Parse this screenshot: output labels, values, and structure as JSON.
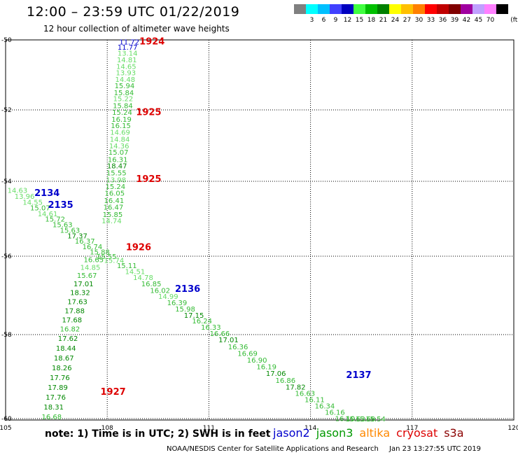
{
  "header": {
    "title": "12:00 – 23:59 UTC 01/22/2019",
    "subtitle": "12 hour collection of altimeter wave heights"
  },
  "color_scale": {
    "unit": "(ft)",
    "bins": [
      {
        "label": "",
        "color": "#808080"
      },
      {
        "label": "3",
        "color": "#00ffff"
      },
      {
        "label": "6",
        "color": "#00c0ff"
      },
      {
        "label": "9",
        "color": "#4040ff"
      },
      {
        "label": "12",
        "color": "#0000c0"
      },
      {
        "label": "15",
        "color": "#40ff40"
      },
      {
        "label": "18",
        "color": "#00c000"
      },
      {
        "label": "21",
        "color": "#008000"
      },
      {
        "label": "24",
        "color": "#ffff00"
      },
      {
        "label": "27",
        "color": "#ffc000"
      },
      {
        "label": "30",
        "color": "#ff8000"
      },
      {
        "label": "33",
        "color": "#ff0000"
      },
      {
        "label": "36",
        "color": "#c00000"
      },
      {
        "label": "39",
        "color": "#800000"
      },
      {
        "label": "42",
        "color": "#a000a0"
      },
      {
        "label": "45",
        "color": "#c0a0ff"
      },
      {
        "label": "70",
        "color": "#ff80ff"
      },
      {
        "label": "",
        "color": "#000000"
      }
    ]
  },
  "map": {
    "lon_ticks": [
      "105",
      "108",
      "111",
      "114",
      "117",
      "120"
    ],
    "lat_ticks": [
      "-50",
      "-52",
      "-54",
      "-56",
      "-58",
      "-60"
    ]
  },
  "tracks": {
    "colors": {
      "jason2": "#0000cc",
      "jason3": "#009900",
      "cryosat": "#dd0000",
      "light": "#66dd66",
      "mid": "#33bb33",
      "dark": "#008800"
    },
    "time_labels": [
      {
        "text": "1924",
        "sat": "cryosat",
        "lon": 108.95,
        "lat": -50.03
      },
      {
        "text": "1925",
        "sat": "cryosat",
        "lon": 108.85,
        "lat": -52.05
      },
      {
        "text": "1925",
        "sat": "cryosat",
        "lon": 108.85,
        "lat": -53.92
      },
      {
        "text": "1926",
        "sat": "cryosat",
        "lon": 108.55,
        "lat": -55.75
      },
      {
        "text": "1927",
        "sat": "cryosat",
        "lon": 107.8,
        "lat": -59.35
      },
      {
        "text": "2134",
        "sat": "jason2",
        "lon": 105.85,
        "lat": -54.3
      },
      {
        "text": "2135",
        "sat": "jason2",
        "lon": 106.25,
        "lat": -54.62
      },
      {
        "text": "2136",
        "sat": "jason2",
        "lon": 110.0,
        "lat": -56.82
      },
      {
        "text": "2137",
        "sat": "jason2",
        "lon": 115.05,
        "lat": -58.95
      }
    ],
    "values": [
      {
        "v": "11.72",
        "sat": "jason2",
        "lon": 108.65,
        "lat": -50.05
      },
      {
        "v": "11.77",
        "sat": "jason2",
        "lon": 108.6,
        "lat": -50.2
      },
      {
        "v": "13.14",
        "sat": "light",
        "lon": 108.6,
        "lat": -50.37
      },
      {
        "v": "14.81",
        "sat": "light",
        "lon": 108.58,
        "lat": -50.56
      },
      {
        "v": "14.65",
        "sat": "light",
        "lon": 108.56,
        "lat": -50.75
      },
      {
        "v": "13.93",
        "sat": "light",
        "lon": 108.55,
        "lat": -50.93
      },
      {
        "v": "14.48",
        "sat": "light",
        "lon": 108.53,
        "lat": -51.12
      },
      {
        "v": "15.94",
        "sat": "mid",
        "lon": 108.51,
        "lat": -51.3
      },
      {
        "v": "15.84",
        "sat": "mid",
        "lon": 108.49,
        "lat": -51.5
      },
      {
        "v": "15.22",
        "sat": "light",
        "lon": 108.47,
        "lat": -51.67
      },
      {
        "v": "15.84",
        "sat": "mid",
        "lon": 108.46,
        "lat": -51.87
      },
      {
        "v": "15.24",
        "sat": "mid",
        "lon": 108.44,
        "lat": -52.06
      },
      {
        "v": "16.19",
        "sat": "mid",
        "lon": 108.42,
        "lat": -52.25
      },
      {
        "v": "16.15",
        "sat": "mid",
        "lon": 108.4,
        "lat": -52.43
      },
      {
        "v": "14.69",
        "sat": "light",
        "lon": 108.38,
        "lat": -52.62
      },
      {
        "v": "14.84",
        "sat": "light",
        "lon": 108.37,
        "lat": -52.81
      },
      {
        "v": "14.36",
        "sat": "light",
        "lon": 108.35,
        "lat": -53.0
      },
      {
        "v": "15.07",
        "sat": "mid",
        "lon": 108.33,
        "lat": -53.18
      },
      {
        "v": "16.31",
        "sat": "mid",
        "lon": 108.31,
        "lat": -53.38
      },
      {
        "v": "18.47",
        "sat": "dark",
        "lon": 108.29,
        "lat": -53.56
      },
      {
        "v": "15.55",
        "sat": "mid",
        "lon": 108.27,
        "lat": -53.75
      },
      {
        "v": "13.98",
        "sat": "light",
        "lon": 108.26,
        "lat": -53.95
      },
      {
        "v": "15.24",
        "sat": "mid",
        "lon": 108.24,
        "lat": -54.13
      },
      {
        "v": "16.05",
        "sat": "mid",
        "lon": 108.22,
        "lat": -54.31
      },
      {
        "v": "16.41",
        "sat": "mid",
        "lon": 108.2,
        "lat": -54.5
      },
      {
        "v": "16.47",
        "sat": "mid",
        "lon": 108.18,
        "lat": -54.68
      },
      {
        "v": "15.85",
        "sat": "mid",
        "lon": 108.16,
        "lat": -54.88
      },
      {
        "v": "14.74",
        "sat": "light",
        "lon": 108.13,
        "lat": -55.05
      },
      {
        "v": "14.63",
        "sat": "light",
        "lon": 105.35,
        "lat": -54.23
      },
      {
        "v": "13.96",
        "sat": "light",
        "lon": 105.56,
        "lat": -54.39
      },
      {
        "v": "14.55",
        "sat": "light",
        "lon": 105.8,
        "lat": -54.55
      },
      {
        "v": "15.07",
        "sat": "mid",
        "lon": 106.02,
        "lat": -54.7
      },
      {
        "v": "14.61",
        "sat": "light",
        "lon": 106.24,
        "lat": -54.86
      },
      {
        "v": "15.72",
        "sat": "mid",
        "lon": 106.46,
        "lat": -55.0
      },
      {
        "v": "15.63",
        "sat": "mid",
        "lon": 106.68,
        "lat": -55.15
      },
      {
        "v": "15.63",
        "sat": "mid",
        "lon": 106.9,
        "lat": -55.3
      },
      {
        "v": "17.37",
        "sat": "dark",
        "lon": 107.12,
        "lat": -55.45
      },
      {
        "v": "16.37",
        "sat": "mid",
        "lon": 107.34,
        "lat": -55.59
      },
      {
        "v": "16.74",
        "sat": "mid",
        "lon": 107.56,
        "lat": -55.74
      },
      {
        "v": "15.88",
        "sat": "mid",
        "lon": 107.78,
        "lat": -55.88
      },
      {
        "v": "15.55",
        "sat": "mid",
        "lon": 107.98,
        "lat": -56.0
      },
      {
        "v": "15.74",
        "sat": "light",
        "lon": 108.2,
        "lat": -56.1
      },
      {
        "v": "15.11",
        "sat": "mid",
        "lon": 108.58,
        "lat": -56.23
      },
      {
        "v": "14.51",
        "sat": "light",
        "lon": 108.82,
        "lat": -56.38
      },
      {
        "v": "14.78",
        "sat": "light",
        "lon": 109.06,
        "lat": -56.54
      },
      {
        "v": "16.85",
        "sat": "mid",
        "lon": 109.3,
        "lat": -56.7
      },
      {
        "v": "16.02",
        "sat": "mid",
        "lon": 109.56,
        "lat": -56.87
      },
      {
        "v": "14.99",
        "sat": "light",
        "lon": 109.8,
        "lat": -57.02
      },
      {
        "v": "16.39",
        "sat": "mid",
        "lon": 110.06,
        "lat": -57.18
      },
      {
        "v": "15.98",
        "sat": "mid",
        "lon": 110.3,
        "lat": -57.34
      },
      {
        "v": "17.15",
        "sat": "dark",
        "lon": 110.56,
        "lat": -57.5
      },
      {
        "v": "16.24",
        "sat": "mid",
        "lon": 110.8,
        "lat": -57.64
      },
      {
        "v": "16.33",
        "sat": "mid",
        "lon": 111.06,
        "lat": -57.8
      },
      {
        "v": "16.66",
        "sat": "mid",
        "lon": 111.32,
        "lat": -57.96
      },
      {
        "v": "17.01",
        "sat": "dark",
        "lon": 111.58,
        "lat": -58.12
      },
      {
        "v": "16.36",
        "sat": "mid",
        "lon": 111.86,
        "lat": -58.28
      },
      {
        "v": "16.69",
        "sat": "mid",
        "lon": 112.14,
        "lat": -58.44
      },
      {
        "v": "16.90",
        "sat": "mid",
        "lon": 112.42,
        "lat": -58.6
      },
      {
        "v": "16.19",
        "sat": "mid",
        "lon": 112.7,
        "lat": -58.76
      },
      {
        "v": "17.06",
        "sat": "dark",
        "lon": 112.98,
        "lat": -58.92
      },
      {
        "v": "16.86",
        "sat": "mid",
        "lon": 113.26,
        "lat": -59.08
      },
      {
        "v": "17.82",
        "sat": "dark",
        "lon": 113.56,
        "lat": -59.24
      },
      {
        "v": "16.63",
        "sat": "mid",
        "lon": 113.84,
        "lat": -59.39
      },
      {
        "v": "16.11",
        "sat": "mid",
        "lon": 114.12,
        "lat": -59.54
      },
      {
        "v": "16.34",
        "sat": "mid",
        "lon": 114.42,
        "lat": -59.69
      },
      {
        "v": "16.16",
        "sat": "mid",
        "lon": 114.72,
        "lat": -59.84
      },
      {
        "v": "16.10",
        "sat": "mid",
        "lon": 115.02,
        "lat": -59.99
      },
      {
        "v": "15.63",
        "sat": "mid",
        "lon": 115.32,
        "lat": -60.14
      },
      {
        "v": "15.69",
        "sat": "mid",
        "lon": 115.62,
        "lat": -60.28
      },
      {
        "v": "15.54",
        "sat": "mid",
        "lon": 115.92,
        "lat": -60.43
      },
      {
        "v": "16.65",
        "sat": "mid",
        "lon": 107.6,
        "lat": -56.08
      },
      {
        "v": "14.85",
        "sat": "light",
        "lon": 107.5,
        "lat": -56.28
      },
      {
        "v": "15.67",
        "sat": "mid",
        "lon": 107.4,
        "lat": -56.48
      },
      {
        "v": "17.01",
        "sat": "dark",
        "lon": 107.3,
        "lat": -56.7
      },
      {
        "v": "18.32",
        "sat": "dark",
        "lon": 107.2,
        "lat": -56.92
      },
      {
        "v": "17.63",
        "sat": "dark",
        "lon": 107.12,
        "lat": -57.15
      },
      {
        "v": "17.88",
        "sat": "dark",
        "lon": 107.04,
        "lat": -57.38
      },
      {
        "v": "17.68",
        "sat": "dark",
        "lon": 106.96,
        "lat": -57.62
      },
      {
        "v": "16.82",
        "sat": "mid",
        "lon": 106.9,
        "lat": -57.85
      },
      {
        "v": "17.62",
        "sat": "dark",
        "lon": 106.84,
        "lat": -58.08
      },
      {
        "v": "18.44",
        "sat": "dark",
        "lon": 106.78,
        "lat": -58.32
      },
      {
        "v": "18.67",
        "sat": "dark",
        "lon": 106.72,
        "lat": -58.55
      },
      {
        "v": "18.26",
        "sat": "dark",
        "lon": 106.66,
        "lat": -58.78
      },
      {
        "v": "17.76",
        "sat": "dark",
        "lon": 106.6,
        "lat": -59.02
      },
      {
        "v": "17.89",
        "sat": "dark",
        "lon": 106.54,
        "lat": -59.25
      },
      {
        "v": "17.76",
        "sat": "dark",
        "lon": 106.48,
        "lat": -59.48
      },
      {
        "v": "18.31",
        "sat": "dark",
        "lon": 106.42,
        "lat": -59.72
      },
      {
        "v": "16.68",
        "sat": "mid",
        "lon": 106.36,
        "lat": -59.95
      }
    ]
  },
  "footer": {
    "note": "note: 1) Time is in UTC; 2) SWH is in feet",
    "legend": [
      {
        "label": "jason2",
        "color": "#0000cc"
      },
      {
        "label": "jason3",
        "color": "#009900"
      },
      {
        "label": "altika",
        "color": "#ff8800"
      },
      {
        "label": "cryosat",
        "color": "#dd0000"
      },
      {
        "label": "s3a",
        "color": "#8b0000"
      }
    ],
    "credit": "NOAA/NESDIS Center for Satellite Applications and Research",
    "timestamp": "Jan 23 13:27:55 UTC 2019"
  }
}
